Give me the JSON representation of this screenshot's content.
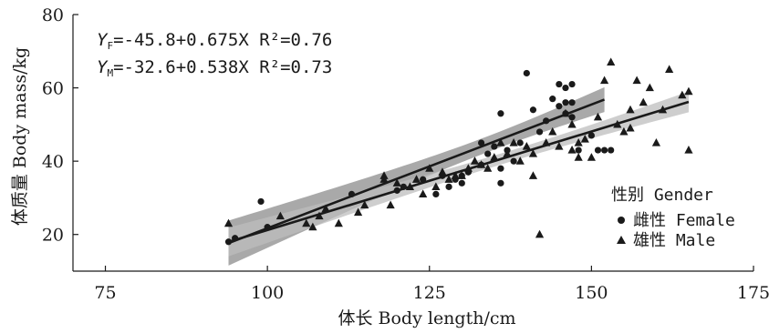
{
  "chart_data": {
    "type": "scatter",
    "xlabel": "体长 Body length/cm",
    "ylabel": "体质量 Body mass/kg",
    "xlim": [
      70,
      175
    ],
    "ylim": [
      10,
      80
    ],
    "xticks": [
      75,
      100,
      125,
      150,
      175
    ],
    "yticks": [
      20,
      40,
      60,
      80
    ],
    "grid": false,
    "legend": {
      "title": "性别 Gender",
      "placement": "right",
      "entries": [
        "雌性 Female",
        "雄性 Male"
      ]
    },
    "annotations": [
      {
        "subscript": "F",
        "text": "=-45.8+0.675X R²=0.76"
      },
      {
        "subscript": "M",
        "text": "=-32.6+0.538X R²=0.73"
      }
    ],
    "fits": [
      {
        "series": "雌性 Female",
        "intercept": -45.8,
        "slope": 0.675,
        "x_range": [
          94,
          152
        ],
        "r2": 0.76
      },
      {
        "series": "雄性 Male",
        "intercept": -32.6,
        "slope": 0.538,
        "x_range": [
          94,
          165
        ],
        "r2": 0.73
      }
    ],
    "series": [
      {
        "name": "雌性 Female",
        "marker": "circle",
        "color": "#1a1a1a",
        "points": [
          [
            94,
            18
          ],
          [
            95,
            19
          ],
          [
            99,
            29
          ],
          [
            100,
            22
          ],
          [
            113,
            31
          ],
          [
            120,
            32
          ],
          [
            121,
            33
          ],
          [
            124,
            35
          ],
          [
            126,
            31
          ],
          [
            127,
            36
          ],
          [
            128,
            33
          ],
          [
            129,
            35
          ],
          [
            130,
            34
          ],
          [
            130,
            36
          ],
          [
            131,
            37
          ],
          [
            133,
            39
          ],
          [
            133,
            45
          ],
          [
            134,
            42
          ],
          [
            135,
            44
          ],
          [
            136,
            34
          ],
          [
            136,
            38
          ],
          [
            136,
            53
          ],
          [
            137,
            43
          ],
          [
            138,
            40
          ],
          [
            139,
            45
          ],
          [
            140,
            64
          ],
          [
            141,
            54
          ],
          [
            142,
            48
          ],
          [
            143,
            51
          ],
          [
            144,
            57
          ],
          [
            145,
            55
          ],
          [
            145,
            61
          ],
          [
            146,
            53
          ],
          [
            146,
            56
          ],
          [
            146,
            60
          ],
          [
            147,
            52
          ],
          [
            147,
            56
          ],
          [
            147,
            61
          ],
          [
            148,
            43
          ],
          [
            150,
            47
          ],
          [
            151,
            43
          ],
          [
            152,
            43
          ],
          [
            153,
            43
          ]
        ]
      },
      {
        "name": "雄性 Male",
        "marker": "triangle",
        "color": "#1a1a1a",
        "points": [
          [
            94,
            23
          ],
          [
            102,
            25
          ],
          [
            106,
            23
          ],
          [
            107,
            22
          ],
          [
            108,
            25
          ],
          [
            109,
            27
          ],
          [
            111,
            23
          ],
          [
            114,
            26
          ],
          [
            115,
            28
          ],
          [
            118,
            36
          ],
          [
            118,
            35
          ],
          [
            119,
            28
          ],
          [
            120,
            34
          ],
          [
            122,
            33
          ],
          [
            123,
            35
          ],
          [
            124,
            31
          ],
          [
            125,
            38
          ],
          [
            126,
            33
          ],
          [
            127,
            37
          ],
          [
            128,
            35
          ],
          [
            129,
            36
          ],
          [
            130,
            36
          ],
          [
            131,
            38
          ],
          [
            132,
            40
          ],
          [
            133,
            39
          ],
          [
            134,
            38
          ],
          [
            135,
            41
          ],
          [
            136,
            45
          ],
          [
            137,
            42
          ],
          [
            138,
            45
          ],
          [
            139,
            40
          ],
          [
            140,
            44
          ],
          [
            141,
            36
          ],
          [
            141,
            42
          ],
          [
            142,
            20
          ],
          [
            143,
            45
          ],
          [
            144,
            48
          ],
          [
            145,
            44
          ],
          [
            146,
            53
          ],
          [
            147,
            43
          ],
          [
            147,
            50
          ],
          [
            148,
            41
          ],
          [
            148,
            45
          ],
          [
            149,
            46
          ],
          [
            150,
            41
          ],
          [
            151,
            52
          ],
          [
            152,
            62
          ],
          [
            153,
            67
          ],
          [
            154,
            50
          ],
          [
            155,
            48
          ],
          [
            156,
            49
          ],
          [
            156,
            54
          ],
          [
            157,
            62
          ],
          [
            158,
            56
          ],
          [
            159,
            60
          ],
          [
            160,
            45
          ],
          [
            161,
            54
          ],
          [
            162,
            65
          ],
          [
            164,
            58
          ],
          [
            165,
            43
          ],
          [
            165,
            59
          ]
        ]
      }
    ]
  }
}
